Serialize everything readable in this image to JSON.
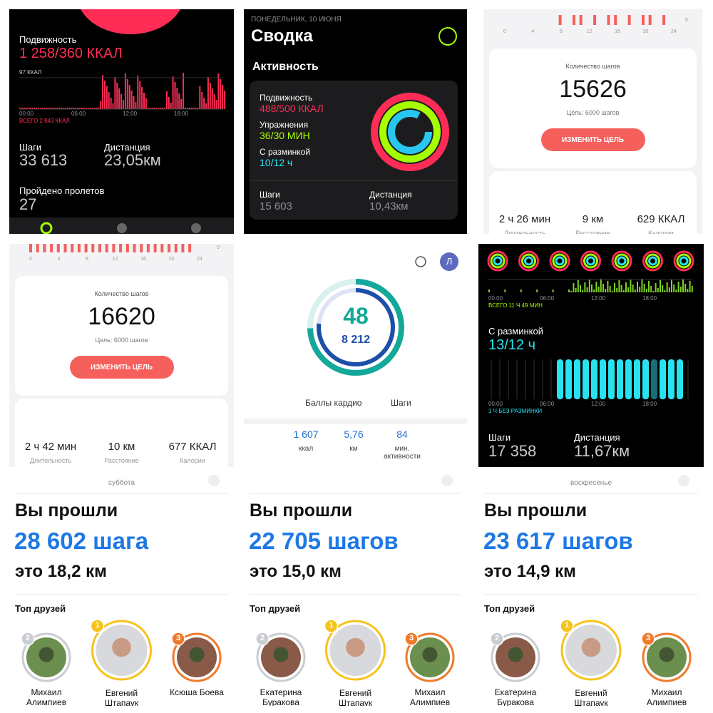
{
  "p1": {
    "move_label": "Подвижность",
    "move_value": "1 258/360 ККАЛ",
    "chart_max": "97 ККАЛ",
    "times": [
      "00:00",
      "06:00",
      "12:00",
      "18:00"
    ],
    "total": "ВСЕГО 2 843 ККАЛ",
    "stats": [
      {
        "label": "Шаги",
        "value": "33 613"
      },
      {
        "label": "Дистанция",
        "value": "23,05км"
      }
    ],
    "flights_label": "Пройдено пролетов",
    "flights_value": "27"
  },
  "p2": {
    "date": "ПОНЕДЕЛЬНИК, 10 ИЮНЯ",
    "title": "Сводка",
    "section": "Активность",
    "rings": [
      {
        "label": "Подвижность",
        "value": "488/500 ККАЛ"
      },
      {
        "label": "Упражнения",
        "value": "36/30 МИН"
      },
      {
        "label": "С разминкой",
        "value": "10/12 ч"
      }
    ],
    "stats": [
      {
        "label": "Шаги",
        "value": "15 603"
      },
      {
        "label": "Дистанция",
        "value": "10,43км"
      }
    ]
  },
  "p3": {
    "hours": [
      "0",
      "4",
      "8",
      "12",
      "16",
      "20",
      "24"
    ],
    "axis_zero": "0",
    "steps_label": "Количество шагов",
    "steps": "15626",
    "goal": "Цель: 6000 шагов",
    "button": "ИЗМЕНИТЬ ЦЕЛЬ",
    "metrics": [
      {
        "value": "2 ч 26 мин",
        "label": "Длительность"
      },
      {
        "value": "9 км",
        "label": "Расстояние"
      },
      {
        "value": "629 ККАЛ",
        "label": "Калории"
      }
    ]
  },
  "p4": {
    "hours": [
      "0",
      "4",
      "8",
      "12",
      "16",
      "20",
      "24"
    ],
    "axis_zero": "0",
    "steps_label": "Количество шагов",
    "steps": "16620",
    "goal": "Цель: 6000 шагов",
    "button": "ИЗМЕНИТЬ ЦЕЛЬ",
    "metrics": [
      {
        "value": "2 ч 42 мин",
        "label": "Длительность"
      },
      {
        "value": "10 км",
        "label": "Расстояние"
      },
      {
        "value": "677 ККАЛ",
        "label": "Калории"
      }
    ]
  },
  "p5": {
    "avatar": "Л",
    "score": "48",
    "steps": "8 212",
    "legend": [
      "Баллы кардио",
      "Шаги"
    ],
    "metrics": [
      {
        "value": "1 607",
        "label": "ккал"
      },
      {
        "value": "5,76",
        "label": "км"
      },
      {
        "value": "84",
        "label": "мин. активности"
      }
    ]
  },
  "p6": {
    "times": [
      "00:00",
      "06:00",
      "12:00",
      "18:00"
    ],
    "total": "ВСЕГО 11 Ч 49 МИН",
    "stand_label": "С разминкой",
    "stand_value": "13/12 ч",
    "note": "1 Ч БЕЗ РАЗМИНКИ",
    "stats": [
      {
        "label": "Шаги",
        "value": "17 358"
      },
      {
        "label": "Дистанция",
        "value": "11,67км"
      }
    ]
  },
  "p7": {
    "day": "суббота",
    "heading": "Вы прошли",
    "steps": "28 602 шага",
    "distance": "это 18,2 км",
    "friends_title": "Топ друзей",
    "friends": [
      {
        "rank": "2",
        "name": "Михаил Алимпиев"
      },
      {
        "rank": "1",
        "name": "Евгений Штапаук"
      },
      {
        "rank": "3",
        "name": "Ксюша Боева"
      }
    ]
  },
  "p8": {
    "heading": "Вы прошли",
    "steps": "22 705 шагов",
    "distance": "это 15,0 км",
    "friends_title": "Топ друзей",
    "friends": [
      {
        "rank": "2",
        "name": "Екатерина Буракова"
      },
      {
        "rank": "1",
        "name": "Евгений Штапаук"
      },
      {
        "rank": "3",
        "name": "Михаил Алимпиев"
      }
    ]
  },
  "p9": {
    "day": "воскресенье",
    "heading": "Вы прошли",
    "steps": "23 617 шагов",
    "distance": "это 14,9 км",
    "friends_title": "Топ друзей",
    "friends": [
      {
        "rank": "2",
        "name": "Екатерина Буракова"
      },
      {
        "rank": "1",
        "name": "Евгений Штапаук"
      },
      {
        "rank": "3",
        "name": "Михаил Алимпиев"
      }
    ]
  }
}
